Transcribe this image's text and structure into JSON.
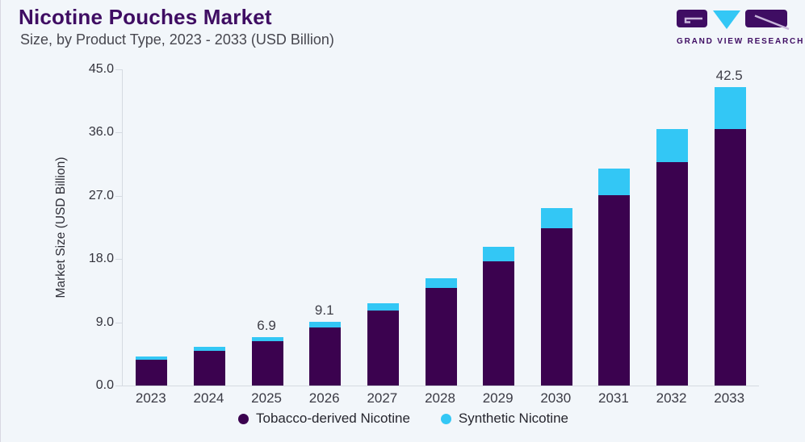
{
  "header": {
    "title": "Nicotine Pouches Market",
    "subtitle": "Size, by Product Type, 2023 - 2033 (USD Billion)"
  },
  "logo": {
    "brand": "GRAND VIEW RESEARCH",
    "purple": "#3F0D63",
    "cyan": "#33C7F5"
  },
  "colors": {
    "background": "#F2F6FA",
    "axis": "#D5DAE1",
    "tobacco_purple": "#3B024F",
    "synthetic_cyan": "#33C7F5",
    "title_purple": "#3F0D63"
  },
  "chart_data": {
    "type": "bar",
    "stacked": true,
    "title": "Nicotine Pouches Market",
    "subtitle": "Size, by Product Type, 2023 - 2033 (USD Billion)",
    "xlabel": "",
    "ylabel": "Market Size (USD Billion)",
    "ylim": [
      0,
      45
    ],
    "grid": false,
    "legend_position": "bottom",
    "yticks": [
      {
        "v": 0,
        "label": "0.0"
      },
      {
        "v": 9,
        "label": "9.0"
      },
      {
        "v": 18,
        "label": "18.0"
      },
      {
        "v": 27,
        "label": "27.0"
      },
      {
        "v": 36,
        "label": "36.0"
      },
      {
        "v": 45,
        "label": "45.0"
      }
    ],
    "categories": [
      "2023",
      "2024",
      "2025",
      "2026",
      "2027",
      "2028",
      "2029",
      "2030",
      "2031",
      "2032",
      "2033"
    ],
    "series": [
      {
        "name": "Tobacco-derived Nicotine",
        "color": "#3B024F",
        "values": [
          3.7,
          4.9,
          6.3,
          8.3,
          10.7,
          13.9,
          17.7,
          22.4,
          27.1,
          31.8,
          36.5
        ]
      },
      {
        "name": "Synthetic Nicotine",
        "color": "#33C7F5",
        "values": [
          0.4,
          0.6,
          0.6,
          0.8,
          1.0,
          1.4,
          2.0,
          2.9,
          3.8,
          4.7,
          6.0
        ]
      }
    ],
    "totals": [
      4.1,
      5.5,
      6.9,
      9.1,
      11.7,
      15.3,
      19.7,
      25.3,
      30.9,
      36.5,
      42.5
    ],
    "total_labels": [
      "",
      "",
      "6.9",
      "9.1",
      "",
      "",
      "",
      "",
      "",
      "",
      "42.5"
    ]
  }
}
